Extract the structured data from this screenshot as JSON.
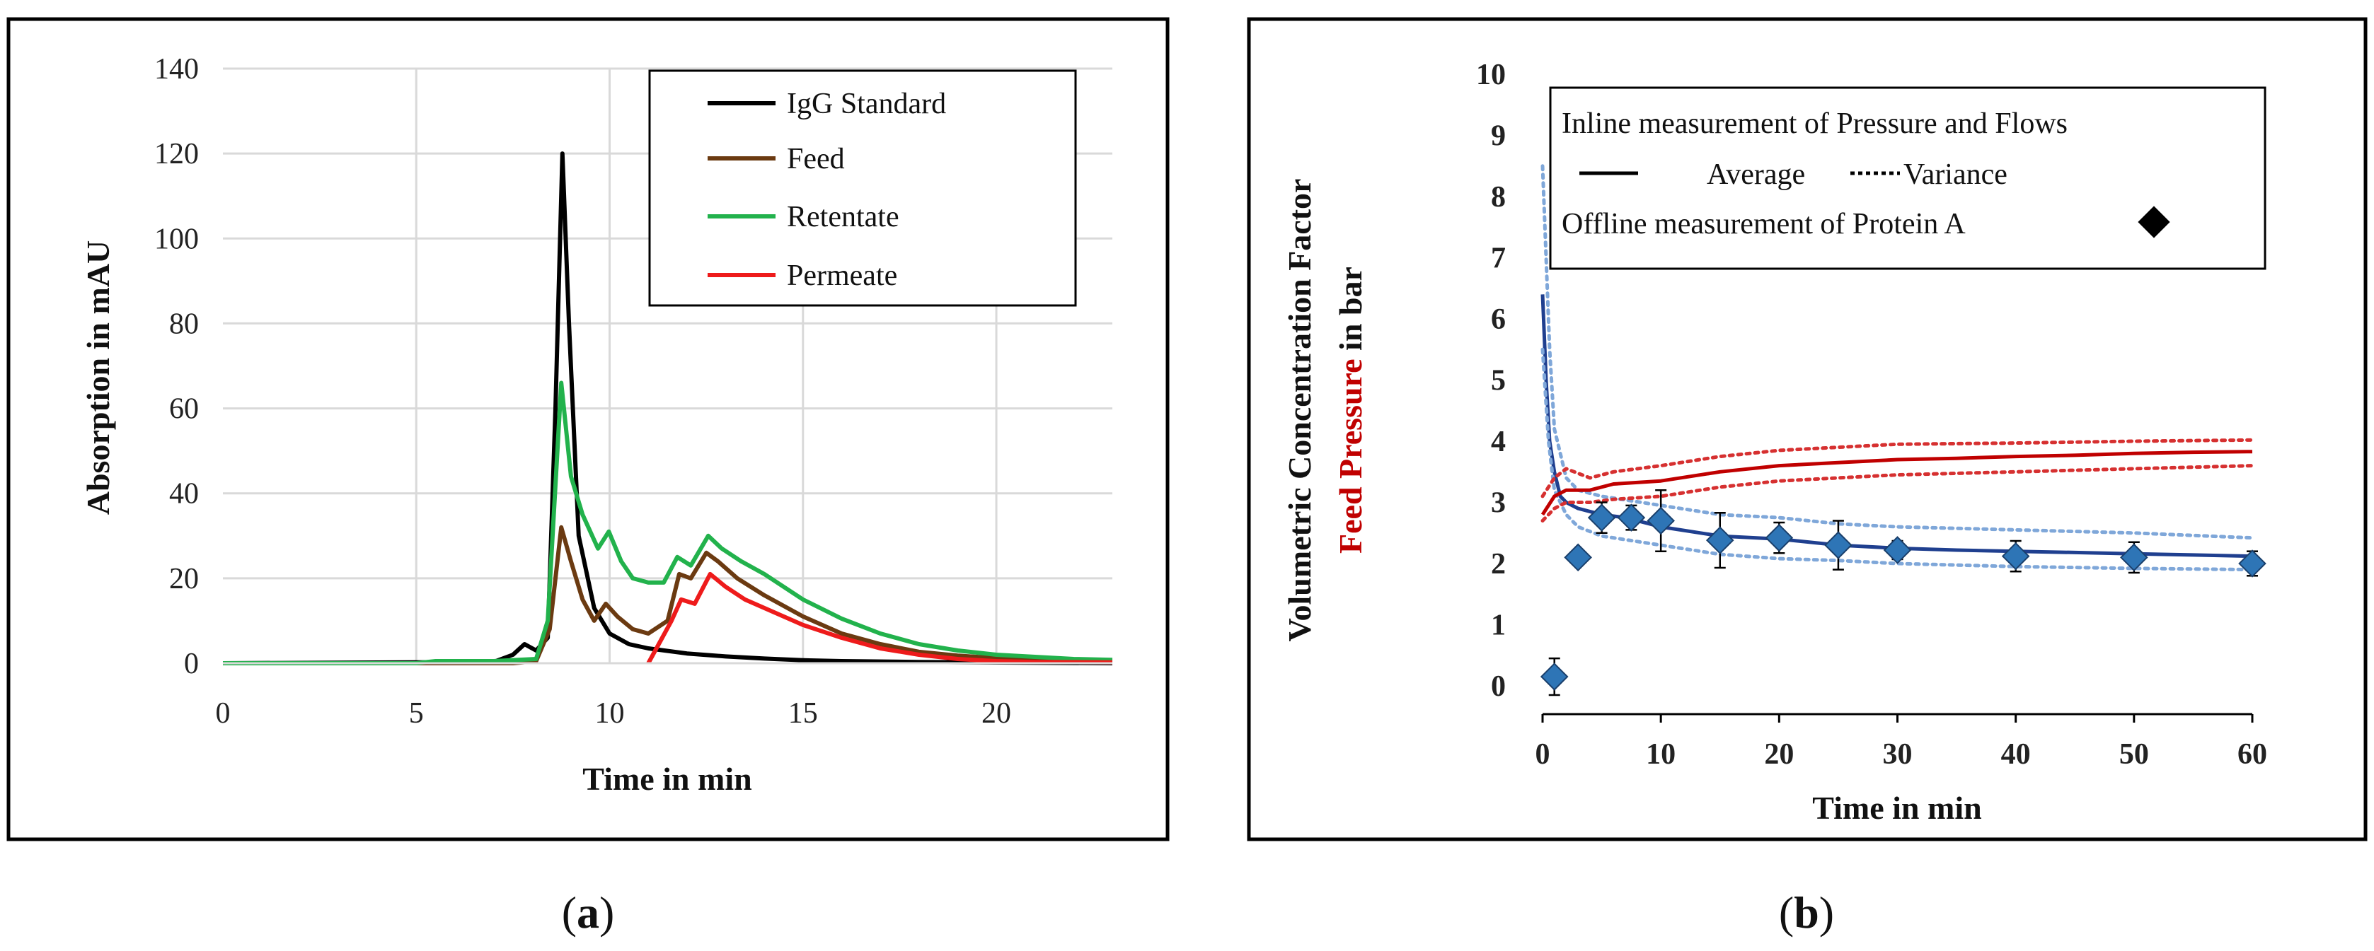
{
  "panel_labels": {
    "a": "a",
    "b": "b"
  },
  "chart_data": [
    {
      "type": "line",
      "xlabel": "Time in min",
      "ylabel": "Absorption in mAU",
      "xlim": [
        0,
        23
      ],
      "ylim": [
        0,
        140
      ],
      "xticks": [
        0,
        5,
        10,
        15,
        20
      ],
      "yticks": [
        0,
        20,
        40,
        60,
        80,
        100,
        120,
        140
      ],
      "grid": true,
      "legend_position": "top-right",
      "series": [
        {
          "name": "IgG Standard",
          "color": "#000000",
          "points": [
            [
              0,
              0
            ],
            [
              7,
              0.3
            ],
            [
              7.5,
              2
            ],
            [
              7.8,
              4.5
            ],
            [
              8.1,
              3
            ],
            [
              8.4,
              6
            ],
            [
              8.6,
              60
            ],
            [
              8.78,
              120
            ],
            [
              8.95,
              80
            ],
            [
              9.2,
              30
            ],
            [
              9.6,
              13
            ],
            [
              10,
              7
            ],
            [
              10.5,
              4.5
            ],
            [
              11,
              3.5
            ],
            [
              12,
              2.3
            ],
            [
              13,
              1.6
            ],
            [
              14,
              1.1
            ],
            [
              15,
              0.7
            ],
            [
              16,
              0.5
            ],
            [
              18,
              0.3
            ],
            [
              23,
              0
            ]
          ]
        },
        {
          "name": "Feed",
          "color": "#6B3A11",
          "points": [
            [
              0,
              0
            ],
            [
              7.5,
              0
            ],
            [
              8.1,
              0.5
            ],
            [
              8.45,
              8
            ],
            [
              8.75,
              32
            ],
            [
              9,
              24
            ],
            [
              9.3,
              15
            ],
            [
              9.6,
              10
            ],
            [
              9.9,
              14
            ],
            [
              10.2,
              11
            ],
            [
              10.6,
              8
            ],
            [
              11,
              7
            ],
            [
              11.5,
              10
            ],
            [
              11.8,
              21
            ],
            [
              12.1,
              20
            ],
            [
              12.5,
              26
            ],
            [
              12.8,
              24
            ],
            [
              13.3,
              20
            ],
            [
              14,
              16
            ],
            [
              15,
              11
            ],
            [
              16,
              7
            ],
            [
              17,
              4.5
            ],
            [
              18,
              2.7
            ],
            [
              19,
              1.8
            ],
            [
              20,
              1.2
            ],
            [
              21,
              0.8
            ],
            [
              23,
              0.5
            ]
          ]
        },
        {
          "name": "Retentate",
          "color": "#22B24C",
          "points": [
            [
              0,
              0
            ],
            [
              5,
              0
            ],
            [
              5.5,
              0.5
            ],
            [
              7,
              0.5
            ],
            [
              8.1,
              1
            ],
            [
              8.4,
              10
            ],
            [
              8.75,
              66
            ],
            [
              9,
              44
            ],
            [
              9.3,
              35
            ],
            [
              9.7,
              27
            ],
            [
              9.98,
              31
            ],
            [
              10.3,
              24
            ],
            [
              10.6,
              20
            ],
            [
              11,
              19
            ],
            [
              11.4,
              19
            ],
            [
              11.75,
              25
            ],
            [
              12.1,
              23
            ],
            [
              12.55,
              30
            ],
            [
              12.9,
              27
            ],
            [
              13.4,
              24
            ],
            [
              14,
              21
            ],
            [
              15,
              15
            ],
            [
              16,
              10.5
            ],
            [
              17,
              7
            ],
            [
              18,
              4.5
            ],
            [
              19,
              3
            ],
            [
              20,
              2
            ],
            [
              21,
              1.5
            ],
            [
              22,
              1
            ],
            [
              23,
              0.8
            ]
          ]
        },
        {
          "name": "Permeate",
          "color": "#EE1B1B",
          "points": [
            [
              11,
              0
            ],
            [
              11.3,
              5
            ],
            [
              11.6,
              10
            ],
            [
              11.85,
              15
            ],
            [
              12.2,
              14
            ],
            [
              12.6,
              21
            ],
            [
              13,
              18
            ],
            [
              13.5,
              15
            ],
            [
              14,
              13
            ],
            [
              15,
              9
            ],
            [
              16,
              6
            ],
            [
              17,
              3.5
            ],
            [
              18,
              2
            ],
            [
              19,
              1
            ],
            [
              20,
              0.5
            ],
            [
              21,
              0.3
            ],
            [
              23,
              0.2
            ]
          ]
        }
      ]
    },
    {
      "type": "line",
      "xlabel": "Time in min",
      "ylabel_parts": [
        {
          "text": "Volumetric Concentration Factor",
          "color": "#2E75B6"
        },
        {
          "text": "Feed Pressure",
          "color": "#C00000"
        },
        {
          "text": " in bar",
          "color": "#111111"
        }
      ],
      "xlim": [
        0,
        60
      ],
      "ylim": [
        0,
        10
      ],
      "xticks": [
        0,
        10,
        20,
        30,
        40,
        50,
        60
      ],
      "yticks": [
        0,
        1,
        2,
        3,
        4,
        5,
        6,
        7,
        8,
        9,
        10
      ],
      "grid": false,
      "legend_position": "top-right",
      "legend": {
        "inline_title": "Inline measurement of Pressure and Flows",
        "average_label": "Average",
        "variance_label": "Variance",
        "offline_label": "Offline measurement of Protein A"
      },
      "series": [
        {
          "name": "VCF average",
          "color": "#1F3F8F",
          "style": "solid",
          "points": [
            [
              0,
              6.4
            ],
            [
              0.3,
              5
            ],
            [
              0.6,
              4
            ],
            [
              1,
              3.5
            ],
            [
              1.5,
              3.1
            ],
            [
              2,
              3
            ],
            [
              3,
              2.9
            ],
            [
              5,
              2.8
            ],
            [
              7,
              2.75
            ],
            [
              10,
              2.6
            ],
            [
              15,
              2.45
            ],
            [
              20,
              2.4
            ],
            [
              25,
              2.3
            ],
            [
              30,
              2.25
            ],
            [
              35,
              2.22
            ],
            [
              40,
              2.2
            ],
            [
              45,
              2.18
            ],
            [
              50,
              2.16
            ],
            [
              55,
              2.14
            ],
            [
              60,
              2.12
            ]
          ]
        },
        {
          "name": "VCF variance upper",
          "color": "#7FA7D9",
          "style": "dotted",
          "points": [
            [
              0,
              8.5
            ],
            [
              0.3,
              7
            ],
            [
              0.6,
              5.5
            ],
            [
              1,
              4.2
            ],
            [
              2,
              3.4
            ],
            [
              3,
              3.2
            ],
            [
              5,
              3.1
            ],
            [
              10,
              2.95
            ],
            [
              15,
              2.8
            ],
            [
              20,
              2.75
            ],
            [
              25,
              2.65
            ],
            [
              30,
              2.6
            ],
            [
              40,
              2.55
            ],
            [
              50,
              2.5
            ],
            [
              60,
              2.42
            ]
          ]
        },
        {
          "name": "VCF variance lower",
          "color": "#7FA7D9",
          "style": "dotted",
          "points": [
            [
              0,
              5.5
            ],
            [
              0.5,
              4
            ],
            [
              1,
              3.2
            ],
            [
              2,
              2.8
            ],
            [
              3,
              2.6
            ],
            [
              5,
              2.45
            ],
            [
              10,
              2.3
            ],
            [
              15,
              2.15
            ],
            [
              20,
              2.08
            ],
            [
              25,
              2.05
            ],
            [
              30,
              2
            ],
            [
              40,
              1.95
            ],
            [
              50,
              1.92
            ],
            [
              60,
              1.9
            ]
          ]
        },
        {
          "name": "Feed pressure average",
          "color": "#C00000",
          "style": "solid",
          "points": [
            [
              0,
              2.8
            ],
            [
              1,
              3.1
            ],
            [
              2,
              3.2
            ],
            [
              4,
              3.2
            ],
            [
              6,
              3.3
            ],
            [
              10,
              3.35
            ],
            [
              15,
              3.5
            ],
            [
              20,
              3.6
            ],
            [
              25,
              3.65
            ],
            [
              30,
              3.7
            ],
            [
              35,
              3.72
            ],
            [
              40,
              3.75
            ],
            [
              45,
              3.77
            ],
            [
              50,
              3.8
            ],
            [
              55,
              3.82
            ],
            [
              60,
              3.83
            ]
          ]
        },
        {
          "name": "Feed pressure variance upper",
          "color": "#D63030",
          "style": "dotted",
          "points": [
            [
              0,
              3.1
            ],
            [
              1,
              3.4
            ],
            [
              2,
              3.55
            ],
            [
              4,
              3.4
            ],
            [
              6,
              3.5
            ],
            [
              10,
              3.6
            ],
            [
              15,
              3.75
            ],
            [
              20,
              3.85
            ],
            [
              25,
              3.9
            ],
            [
              30,
              3.95
            ],
            [
              40,
              3.97
            ],
            [
              50,
              4
            ],
            [
              60,
              4.02
            ]
          ]
        },
        {
          "name": "Feed pressure variance lower",
          "color": "#D63030",
          "style": "dotted",
          "points": [
            [
              0,
              2.7
            ],
            [
              1,
              2.9
            ],
            [
              2,
              3
            ],
            [
              4,
              3
            ],
            [
              6,
              3.05
            ],
            [
              10,
              3.1
            ],
            [
              15,
              3.25
            ],
            [
              20,
              3.35
            ],
            [
              25,
              3.4
            ],
            [
              30,
              3.45
            ],
            [
              40,
              3.5
            ],
            [
              50,
              3.55
            ],
            [
              60,
              3.6
            ]
          ]
        }
      ],
      "offline_points": {
        "name": "Offline measurement of Protein A",
        "color": "#2E75B6",
        "points": [
          {
            "x": 1,
            "y": 0.15,
            "err": 0.3
          },
          {
            "x": 3,
            "y": 2.1,
            "err": 0.05
          },
          {
            "x": 5,
            "y": 2.75,
            "err": 0.25
          },
          {
            "x": 7.5,
            "y": 2.75,
            "err": 0.2
          },
          {
            "x": 10,
            "y": 2.7,
            "err": 0.5
          },
          {
            "x": 15,
            "y": 2.38,
            "err": 0.45
          },
          {
            "x": 20,
            "y": 2.42,
            "err": 0.25
          },
          {
            "x": 25,
            "y": 2.3,
            "err": 0.4
          },
          {
            "x": 30,
            "y": 2.22,
            "err": 0.15
          },
          {
            "x": 40,
            "y": 2.12,
            "err": 0.25
          },
          {
            "x": 50,
            "y": 2.1,
            "err": 0.25
          },
          {
            "x": 60,
            "y": 2,
            "err": 0.2
          }
        ]
      }
    }
  ]
}
